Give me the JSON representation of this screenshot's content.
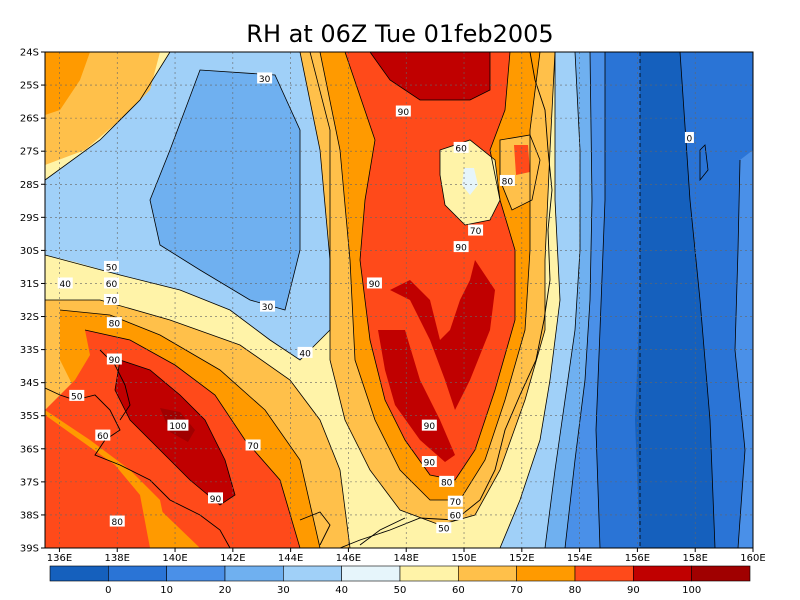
{
  "chart_data": {
    "type": "heatmap",
    "title": "RH at 06Z Tue 01feb2005",
    "x_ticks": [
      "136E",
      "138E",
      "140E",
      "142E",
      "144E",
      "146E",
      "148E",
      "150E",
      "152E",
      "154E",
      "156E",
      "158E",
      "160E"
    ],
    "y_ticks": [
      "24S",
      "25S",
      "26S",
      "27S",
      "28S",
      "29S",
      "30S",
      "31S",
      "32S",
      "33S",
      "34S",
      "35S",
      "36S",
      "37S",
      "38S",
      "39S"
    ],
    "xlim": [
      135.5,
      160
    ],
    "ylim": [
      -39,
      -24
    ],
    "grid": true,
    "colorbar": {
      "levels": [
        0,
        10,
        20,
        30,
        40,
        50,
        60,
        70,
        80,
        90,
        100
      ],
      "labels": [
        "0",
        "10",
        "20",
        "30",
        "40",
        "50",
        "60",
        "70",
        "80",
        "90",
        "100"
      ],
      "colors": [
        "#1560bd",
        "#2a74d6",
        "#4a90e8",
        "#6fb0f0",
        "#a0d0f8",
        "#e6f5fb",
        "#fff3a8",
        "#ffc04a",
        "#ff9a00",
        "#ff4a1a",
        "#c00000",
        "#a00000"
      ]
    },
    "contour_labels": [
      {
        "text": "30",
        "lon": 143.1,
        "lat": -24.8
      },
      {
        "text": "90",
        "lon": 147.9,
        "lat": -25.8
      },
      {
        "text": "0",
        "lon": 157.8,
        "lat": -26.6
      },
      {
        "text": "60",
        "lon": 149.9,
        "lat": -26.9
      },
      {
        "text": "80",
        "lon": 151.5,
        "lat": -27.9
      },
      {
        "text": "70",
        "lon": 150.4,
        "lat": -29.4
      },
      {
        "text": "90",
        "lon": 149.9,
        "lat": -29.9
      },
      {
        "text": "50",
        "lon": 137.8,
        "lat": -30.5
      },
      {
        "text": "40",
        "lon": 136.2,
        "lat": -31.0
      },
      {
        "text": "90",
        "lon": 146.9,
        "lat": -31.0
      },
      {
        "text": "60",
        "lon": 137.8,
        "lat": -31.0
      },
      {
        "text": "70",
        "lon": 137.8,
        "lat": -31.5
      },
      {
        "text": "30",
        "lon": 143.2,
        "lat": -31.7
      },
      {
        "text": "80",
        "lon": 137.9,
        "lat": -32.2
      },
      {
        "text": "40",
        "lon": 144.5,
        "lat": -33.1
      },
      {
        "text": "90",
        "lon": 137.9,
        "lat": -33.3
      },
      {
        "text": "50",
        "lon": 136.6,
        "lat": -34.4
      },
      {
        "text": "100",
        "lon": 140.1,
        "lat": -35.3
      },
      {
        "text": "90",
        "lon": 148.8,
        "lat": -35.3
      },
      {
        "text": "60",
        "lon": 137.5,
        "lat": -35.6
      },
      {
        "text": "70",
        "lon": 142.7,
        "lat": -35.9
      },
      {
        "text": "90",
        "lon": 148.8,
        "lat": -36.4
      },
      {
        "text": "80",
        "lon": 149.4,
        "lat": -37.0
      },
      {
        "text": "70",
        "lon": 149.7,
        "lat": -37.6
      },
      {
        "text": "90",
        "lon": 141.4,
        "lat": -37.5
      },
      {
        "text": "60",
        "lon": 149.7,
        "lat": -38.0
      },
      {
        "text": "80",
        "lon": 138.0,
        "lat": -38.2
      },
      {
        "text": "50",
        "lon": 149.3,
        "lat": -38.4
      }
    ]
  }
}
